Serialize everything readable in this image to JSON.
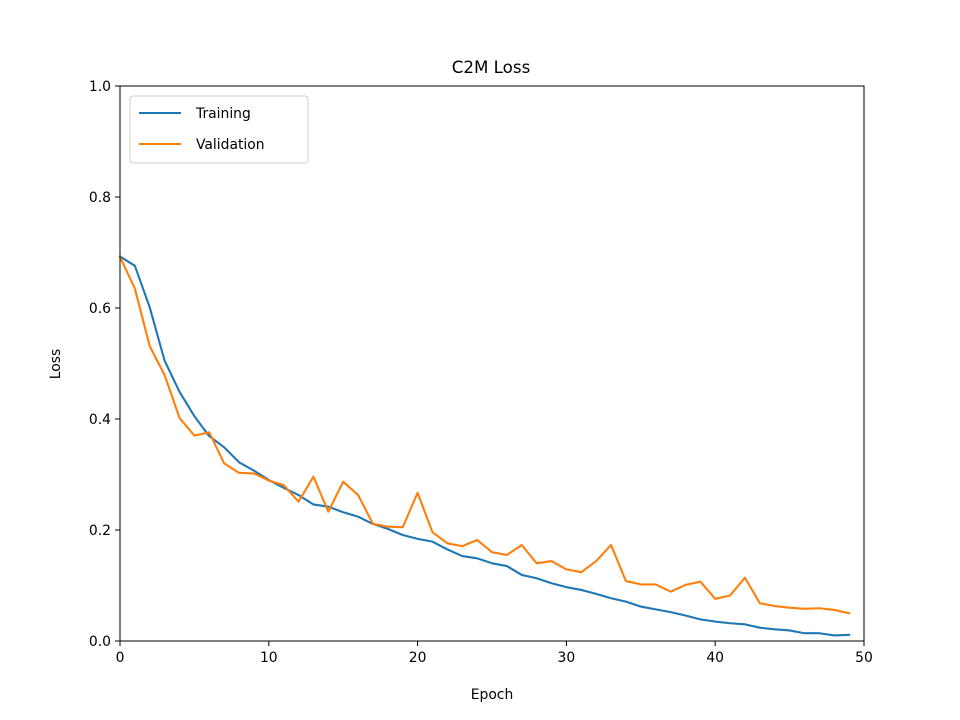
{
  "chart_data": {
    "type": "line",
    "title": "C2M Loss",
    "xlabel": "Epoch",
    "ylabel": "Loss",
    "xlim": [
      0,
      50
    ],
    "ylim": [
      0,
      1.0
    ],
    "x_ticks": [
      "0",
      "10",
      "20",
      "30",
      "40",
      "50"
    ],
    "y_ticks": [
      "0.0",
      "0.2",
      "0.4",
      "0.6",
      "0.8",
      "1.0"
    ],
    "grid": false,
    "legend_position": "top-left",
    "x": [
      0,
      1,
      2,
      3,
      4,
      5,
      6,
      7,
      8,
      9,
      10,
      11,
      12,
      13,
      14,
      15,
      16,
      17,
      18,
      19,
      20,
      21,
      22,
      23,
      24,
      25,
      26,
      27,
      28,
      29,
      30,
      31,
      32,
      33,
      34,
      35,
      36,
      37,
      38,
      39,
      40,
      41,
      42,
      43,
      44,
      45,
      46,
      47,
      48,
      49
    ],
    "series": [
      {
        "name": "Training",
        "color": "#1f77b4",
        "values": [
          0.693,
          0.676,
          0.601,
          0.505,
          0.449,
          0.405,
          0.369,
          0.349,
          0.322,
          0.307,
          0.29,
          0.276,
          0.263,
          0.246,
          0.242,
          0.232,
          0.224,
          0.211,
          0.202,
          0.191,
          0.184,
          0.179,
          0.165,
          0.153,
          0.149,
          0.14,
          0.135,
          0.119,
          0.113,
          0.104,
          0.097,
          0.092,
          0.085,
          0.077,
          0.071,
          0.062,
          0.057,
          0.052,
          0.046,
          0.039,
          0.035,
          0.032,
          0.03,
          0.024,
          0.021,
          0.019,
          0.014,
          0.014,
          0.01,
          0.011
        ]
      },
      {
        "name": "Validation",
        "color": "#ff7f0e",
        "values": [
          0.692,
          0.635,
          0.531,
          0.479,
          0.402,
          0.37,
          0.376,
          0.32,
          0.303,
          0.302,
          0.289,
          0.281,
          0.251,
          0.296,
          0.233,
          0.287,
          0.263,
          0.211,
          0.206,
          0.205,
          0.267,
          0.196,
          0.176,
          0.171,
          0.182,
          0.16,
          0.155,
          0.173,
          0.14,
          0.144,
          0.129,
          0.124,
          0.144,
          0.173,
          0.108,
          0.102,
          0.102,
          0.089,
          0.101,
          0.107,
          0.076,
          0.082,
          0.114,
          0.068,
          0.063,
          0.06,
          0.058,
          0.059,
          0.056,
          0.05
        ]
      }
    ]
  }
}
